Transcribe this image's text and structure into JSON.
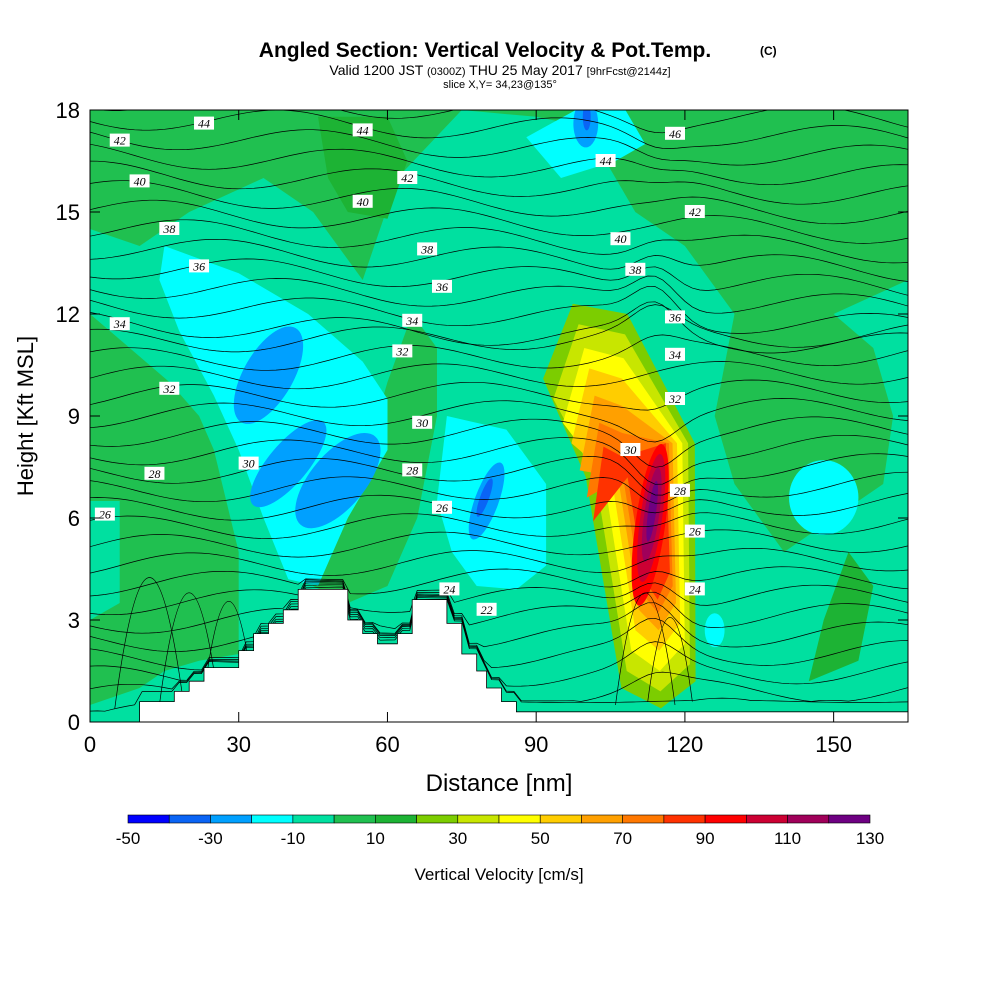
{
  "header": {
    "title": "Angled Section: Vertical Velocity & Pot.Temp.",
    "title_mark": "(C)",
    "valid_a": "Valid 1200 JST",
    "valid_z": "(0300Z)",
    "valid_b": "THU 25 May 2017",
    "fcst": "[9hrFcst@2144z]",
    "slice": "slice X,Y= 34,23@135°"
  },
  "chart_data": {
    "type": "heatmap",
    "title": "Angled Section: Vertical Velocity & Pot.Temp.",
    "xlabel": "Distance [nm]",
    "ylabel": "Height [Kft MSL]",
    "xlim": [
      0,
      165
    ],
    "ylim": [
      0,
      18
    ],
    "x_ticks": [
      0,
      30,
      60,
      90,
      120,
      150
    ],
    "y_ticks": [
      0,
      3,
      6,
      9,
      12,
      15,
      18
    ],
    "colorbar": {
      "label": "Vertical Velocity [cm/s]",
      "bounds": [
        -50,
        -40,
        -30,
        -20,
        -10,
        0,
        10,
        20,
        30,
        40,
        50,
        60,
        70,
        80,
        90,
        100,
        110,
        120,
        130
      ],
      "tick_labels": [
        "-50",
        "-30",
        "-10",
        "10",
        "30",
        "50",
        "70",
        "90",
        "110",
        "130"
      ],
      "colors": [
        "#0000ff",
        "#0a64f5",
        "#00a0ff",
        "#00ffff",
        "#00e0a0",
        "#20c050",
        "#1db334",
        "#7ccd00",
        "#c8e600",
        "#ffff00",
        "#ffcd00",
        "#ffa000",
        "#ff7800",
        "#ff3200",
        "#ff0000",
        "#cc0033",
        "#a0005a",
        "#6e0082"
      ]
    },
    "terrain_profile": {
      "x": [
        0,
        10,
        17,
        20,
        23,
        30,
        33,
        36,
        39,
        42,
        45,
        52,
        55,
        58,
        62,
        65,
        70,
        72,
        75,
        78,
        80,
        83,
        86,
        165
      ],
      "y": [
        0,
        0.6,
        0.9,
        1.2,
        1.6,
        2.1,
        2.6,
        2.9,
        3.3,
        3.9,
        3.9,
        3.0,
        2.6,
        2.3,
        2.6,
        3.6,
        3.6,
        2.9,
        2.0,
        1.5,
        1.0,
        0.6,
        0.3,
        0.3
      ]
    },
    "vertical_velocity_features": [
      {
        "kind": "updraft",
        "x": 113,
        "y": 6.2,
        "peak": 130
      },
      {
        "kind": "updraft-band",
        "x": 104,
        "y": 10.5,
        "peak": 50
      },
      {
        "kind": "downdraft",
        "x": 36,
        "y": 10,
        "peak": -30
      },
      {
        "kind": "downdraft",
        "x": 50,
        "y": 7,
        "peak": -30
      },
      {
        "kind": "downdraft",
        "x": 80,
        "y": 6.5,
        "peak": -40
      },
      {
        "kind": "downdraft",
        "x": 100,
        "y": 17.6,
        "peak": -30
      }
    ],
    "theta_contour_labels": [
      {
        "text": "44",
        "x": 23,
        "y": 17.6
      },
      {
        "text": "44",
        "x": 55,
        "y": 17.4
      },
      {
        "text": "46",
        "x": 118,
        "y": 17.3
      },
      {
        "text": "42",
        "x": 6,
        "y": 17.1
      },
      {
        "text": "44",
        "x": 104,
        "y": 16.5
      },
      {
        "text": "42",
        "x": 64,
        "y": 16.0
      },
      {
        "text": "40",
        "x": 10,
        "y": 15.9
      },
      {
        "text": "40",
        "x": 55,
        "y": 15.3
      },
      {
        "text": "42",
        "x": 122,
        "y": 15.0
      },
      {
        "text": "38",
        "x": 16,
        "y": 14.5
      },
      {
        "text": "40",
        "x": 107,
        "y": 14.2
      },
      {
        "text": "38",
        "x": 68,
        "y": 13.9
      },
      {
        "text": "36",
        "x": 22,
        "y": 13.4
      },
      {
        "text": "38",
        "x": 110,
        "y": 13.3
      },
      {
        "text": "36",
        "x": 71,
        "y": 12.8
      },
      {
        "text": "34",
        "x": 6,
        "y": 11.7
      },
      {
        "text": "34",
        "x": 65,
        "y": 11.8
      },
      {
        "text": "36",
        "x": 118,
        "y": 11.9
      },
      {
        "text": "32",
        "x": 63,
        "y": 10.9
      },
      {
        "text": "34",
        "x": 118,
        "y": 10.8
      },
      {
        "text": "32",
        "x": 16,
        "y": 9.8
      },
      {
        "text": "32",
        "x": 118,
        "y": 9.5
      },
      {
        "text": "30",
        "x": 67,
        "y": 8.8
      },
      {
        "text": "30",
        "x": 109,
        "y": 8.0
      },
      {
        "text": "30",
        "x": 32,
        "y": 7.6
      },
      {
        "text": "28",
        "x": 13,
        "y": 7.3
      },
      {
        "text": "28",
        "x": 65,
        "y": 7.4
      },
      {
        "text": "28",
        "x": 119,
        "y": 6.8
      },
      {
        "text": "26",
        "x": 3,
        "y": 6.1
      },
      {
        "text": "26",
        "x": 71,
        "y": 6.3
      },
      {
        "text": "26",
        "x": 122,
        "y": 5.6
      },
      {
        "text": "24",
        "x": 72.5,
        "y": 3.9
      },
      {
        "text": "24",
        "x": 122,
        "y": 3.9
      },
      {
        "text": "22",
        "x": 80,
        "y": 3.3
      }
    ]
  }
}
